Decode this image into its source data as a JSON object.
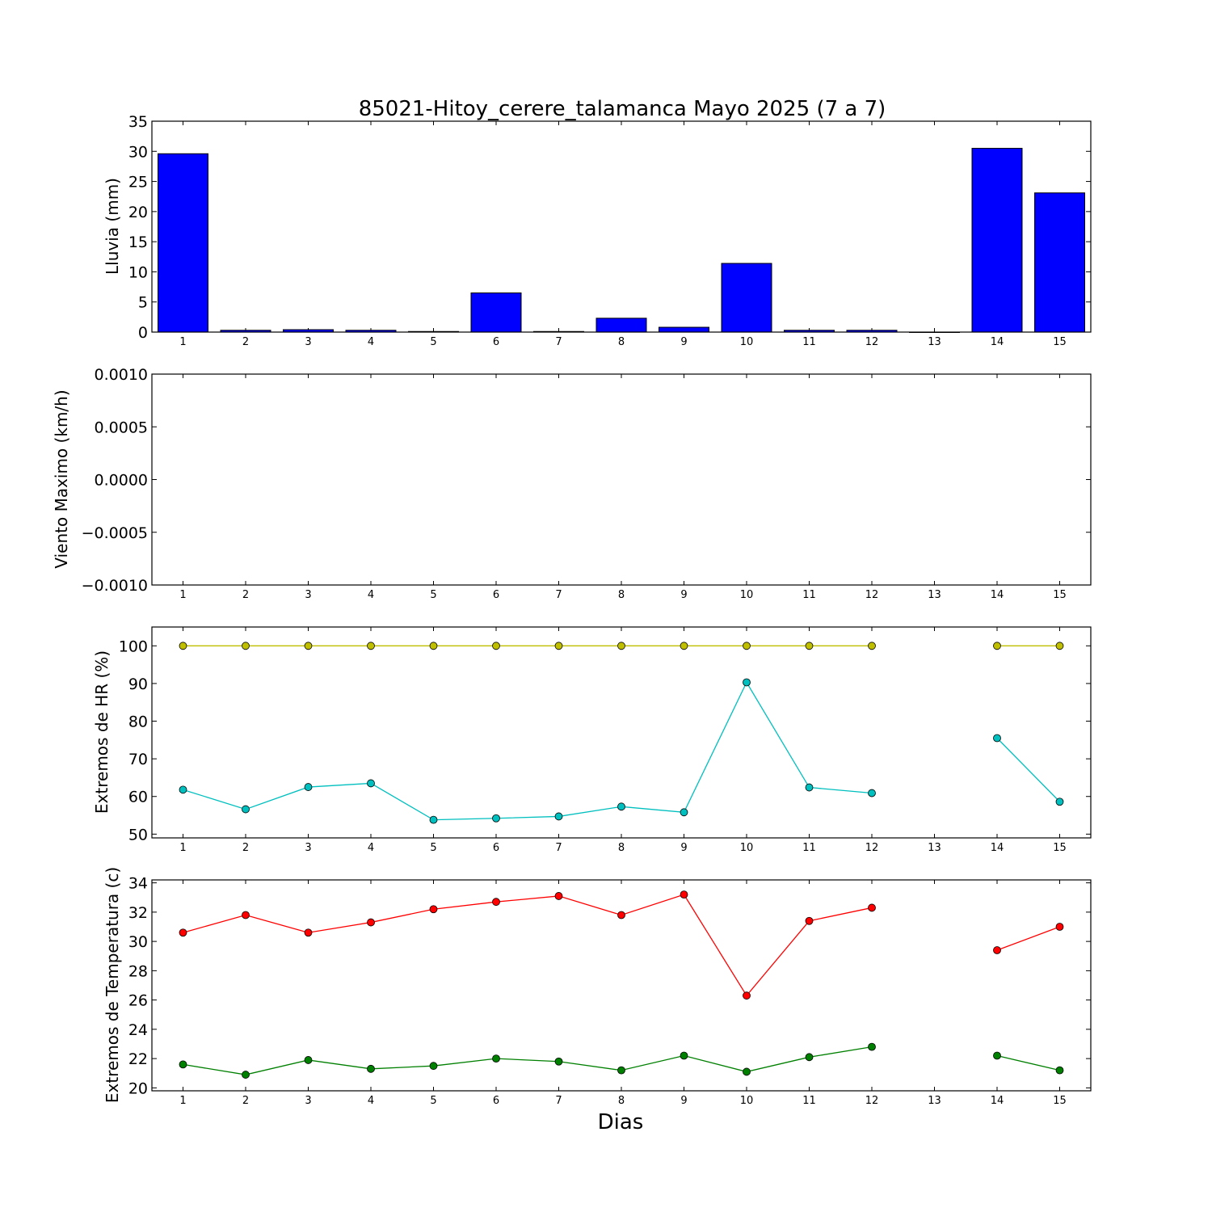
{
  "title": "85021-Hitoy_cerere_talamanca Mayo 2025  (7 a 7)",
  "xlabel": "Dias",
  "chart_data": [
    {
      "type": "bar",
      "ylabel": "Lluvia (mm)",
      "categories": [
        "1",
        "2",
        "3",
        "4",
        "5",
        "6",
        "7",
        "8",
        "9",
        "10",
        "11",
        "12",
        "13",
        "14",
        "15"
      ],
      "values": [
        29.6,
        0.3,
        0.4,
        0.3,
        0.1,
        6.5,
        0.1,
        2.3,
        0.8,
        11.4,
        0.3,
        0.3,
        0,
        30.5,
        23.1
      ],
      "ylim": [
        0,
        35
      ],
      "yticks": [
        "0",
        "5",
        "10",
        "15",
        "20",
        "25",
        "30",
        "35"
      ],
      "color": "#0000ff"
    },
    {
      "type": "line",
      "ylabel": "Viento Maximo (km/h)",
      "categories": [
        "1",
        "2",
        "3",
        "4",
        "5",
        "6",
        "7",
        "8",
        "9",
        "10",
        "11",
        "12",
        "13",
        "14",
        "15"
      ],
      "series": [],
      "ylim": [
        -0.001,
        0.001
      ],
      "yticks": [
        "−0.0010",
        "−0.0005",
        "0.0000",
        "0.0005",
        "0.0010"
      ]
    },
    {
      "type": "line",
      "ylabel": "Extremos de HR (%)",
      "categories": [
        "1",
        "2",
        "3",
        "4",
        "5",
        "6",
        "7",
        "8",
        "9",
        "10",
        "11",
        "12",
        "13",
        "14",
        "15"
      ],
      "ylim": [
        49,
        105
      ],
      "yticks": [
        "50",
        "60",
        "70",
        "80",
        "90",
        "100"
      ],
      "series": [
        {
          "color": "#bfbf00",
          "values": [
            100,
            100,
            100,
            100,
            100,
            100,
            100,
            100,
            100,
            100,
            100,
            100,
            null,
            100,
            100
          ]
        },
        {
          "color": "#00bfbf",
          "values": [
            61.8,
            56.6,
            62.5,
            63.5,
            53.8,
            54.2,
            54.7,
            57.3,
            55.8,
            90.3,
            62.4,
            60.9,
            null,
            75.5,
            58.6
          ]
        }
      ]
    },
    {
      "type": "line",
      "ylabel": "Extremos de Temperatura (c)",
      "categories": [
        "1",
        "2",
        "3",
        "4",
        "5",
        "6",
        "7",
        "8",
        "9",
        "10",
        "11",
        "12",
        "13",
        "14",
        "15"
      ],
      "ylim": [
        19.8,
        34.2
      ],
      "yticks": [
        "20",
        "22",
        "24",
        "26",
        "28",
        "30",
        "32",
        "34"
      ],
      "series": [
        {
          "color": "#ff0000",
          "values": [
            30.6,
            31.8,
            30.6,
            31.3,
            32.2,
            32.7,
            33.1,
            31.8,
            33.2,
            26.3,
            31.4,
            32.3,
            null,
            29.4,
            31.0
          ]
        },
        {
          "color": "#008000",
          "values": [
            21.6,
            20.9,
            21.9,
            21.3,
            21.5,
            22.0,
            21.8,
            21.2,
            22.2,
            21.1,
            22.1,
            22.8,
            null,
            22.2,
            21.2
          ]
        }
      ]
    }
  ]
}
